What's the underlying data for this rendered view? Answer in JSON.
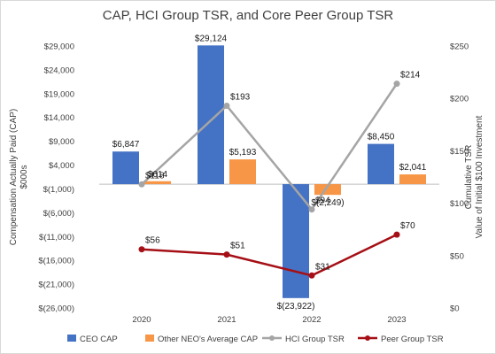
{
  "chart_data": {
    "type": "bar",
    "title": "CAP, HCI Group TSR, and Core Peer Group TSR",
    "categories": [
      "2020",
      "2021",
      "2022",
      "2023"
    ],
    "ylabel_left": [
      "Compensation Actually Paid (CAP)",
      "$000s"
    ],
    "ylabel_right": [
      "Cumulative TSR",
      "Value of Initial $100 Investment"
    ],
    "left_axis": {
      "ylim": [
        -26000,
        29000
      ],
      "ticks": [
        29000,
        24000,
        19000,
        14000,
        9000,
        4000,
        -1000,
        -6000,
        -11000,
        -16000,
        -21000,
        -26000
      ],
      "tick_labels": [
        "$29,000",
        "$24,000",
        "$19,000",
        "$14,000",
        "$9,000",
        "$4,000",
        "$(1,000)",
        "$(6,000)",
        "$(11,000)",
        "$(16,000)",
        "$(21,000)",
        "$(26,000)"
      ]
    },
    "right_axis": {
      "ylim": [
        0,
        250
      ],
      "ticks": [
        250,
        200,
        150,
        100,
        50,
        0
      ],
      "tick_labels": [
        "$250",
        "$200",
        "$150",
        "$100",
        "$50",
        "$0"
      ]
    },
    "bar_series": [
      {
        "name": "CEO CAP",
        "color": "#4472c4",
        "values": [
          6847,
          29124,
          -23922,
          8450
        ],
        "labels": [
          "$6,847",
          "$29,124",
          "$(23,922)",
          "$8,450"
        ]
      },
      {
        "name": "Other NEO's Average CAP",
        "color": "#f79646",
        "values": [
          614,
          5193,
          -2249,
          2041
        ],
        "labels": [
          "$614",
          "$5,193",
          "$(2,249)",
          "$2,041"
        ]
      }
    ],
    "line_series": [
      {
        "name": "HCI Group TSR",
        "color": "#a5a5a5",
        "values": [
          118,
          193,
          94,
          214
        ],
        "labels": [
          "$118",
          "$193",
          "$94",
          "$214"
        ]
      },
      {
        "name": "Peer Group TSR",
        "color": "#a50f15",
        "values": [
          56,
          51,
          31,
          70
        ],
        "labels": [
          "$56",
          "$51",
          "$31",
          "$70"
        ]
      }
    ],
    "legend": [
      "CEO CAP",
      "Other NEO's Average CAP",
      "HCI Group TSR",
      "Peer Group TSR"
    ],
    "legend_position": "bottom",
    "grid": false
  }
}
